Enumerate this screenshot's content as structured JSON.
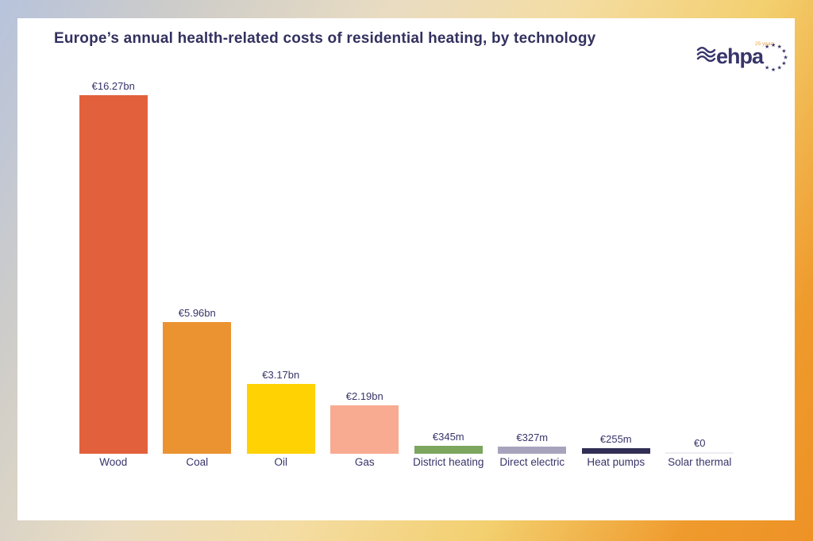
{
  "title": "Europe’s annual health-related costs of residential heating, by technology",
  "logo": {
    "name": "ehpa",
    "tagline": "25 years"
  },
  "chart_data": {
    "type": "bar",
    "title": "Europe’s annual health-related costs of residential heating, by technology",
    "unit": "EUR (billions)",
    "categories": [
      "Wood",
      "Coal",
      "Oil",
      "Gas",
      "District heating",
      "Direct electric",
      "Heat pumps",
      "Solar thermal"
    ],
    "values_eur_bn": [
      16.27,
      5.96,
      3.17,
      2.19,
      0.345,
      0.327,
      0.255,
      0
    ],
    "value_labels": [
      "€16.27bn",
      "€5.96bn",
      "€3.17bn",
      "€2.19bn",
      "€345m",
      "€327m",
      "€255m",
      "€0"
    ],
    "bar_colors": [
      "#e2613c",
      "#eb9330",
      "#ffd204",
      "#f8ab90",
      "#7ca55d",
      "#a8a3bd",
      "#312f55",
      "#ececf2"
    ],
    "ylim": [
      0,
      16.27
    ],
    "grid": false,
    "legend": false
  },
  "style": {
    "text_color": "#37356a",
    "title_color": "#32315f",
    "card_background": "#ffffff",
    "border_gradient": [
      "#b7c3dc",
      "#f4dda4",
      "#ee9226"
    ],
    "logo_accent": "#eea13f"
  }
}
